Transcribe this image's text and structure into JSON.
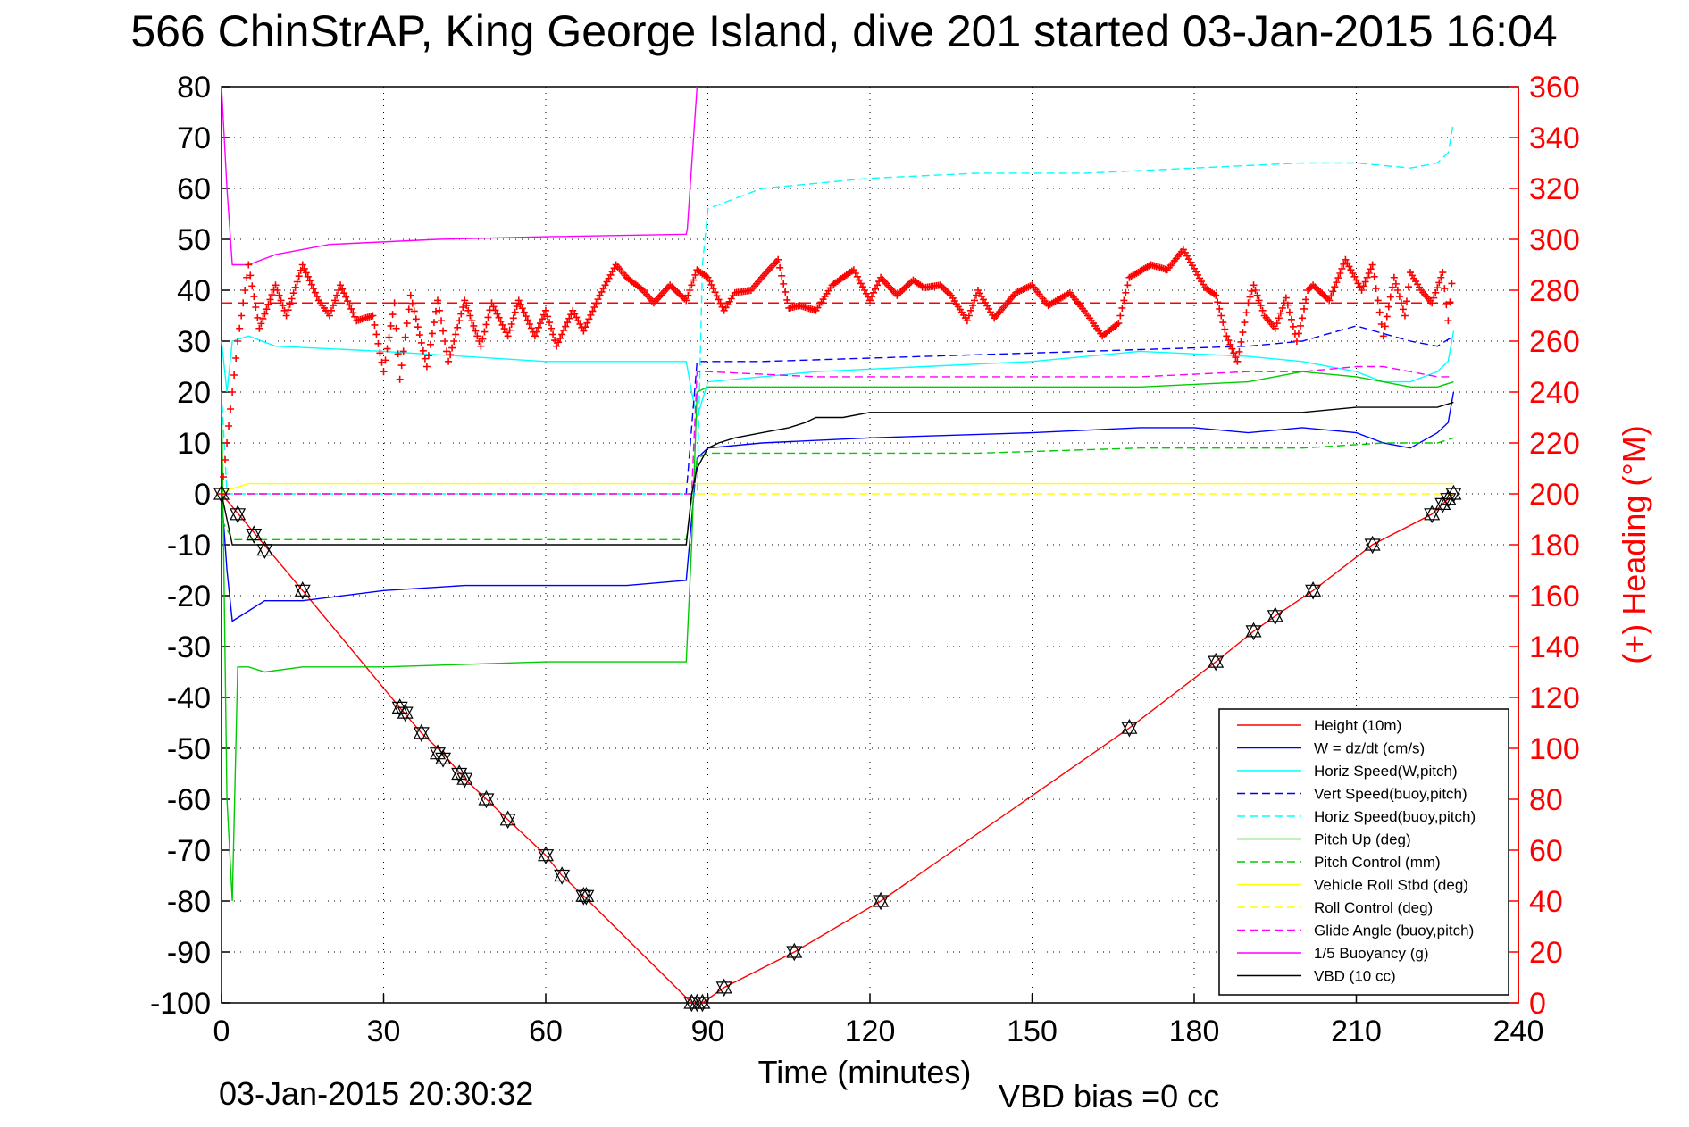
{
  "chart_data": {
    "type": "line",
    "title": "566 ChinStrAP, King George Island, dive 201 started 03-Jan-2015 16:04",
    "xlabel": "Time (minutes)",
    "ylabel_right": "(+) Heading (°M)",
    "footer_left": "03-Jan-2015 20:30:32",
    "footer_right": "VBD bias =0 cc",
    "xlim": [
      0,
      240
    ],
    "ylim": [
      -100,
      80
    ],
    "ylim_right": [
      0,
      360
    ],
    "x_ticks": [
      0,
      30,
      60,
      90,
      120,
      150,
      180,
      210,
      240
    ],
    "y_ticks": [
      80,
      70,
      60,
      50,
      40,
      30,
      20,
      10,
      0,
      -10,
      -20,
      -30,
      -40,
      -50,
      -60,
      -70,
      -80,
      -90,
      -100
    ],
    "y_ticks_right": [
      360,
      340,
      320,
      300,
      280,
      260,
      240,
      220,
      200,
      180,
      160,
      140,
      120,
      100,
      80,
      60,
      40,
      20,
      0
    ],
    "x_tick_labels": [
      "0",
      "30",
      "60",
      "90",
      "120",
      "150",
      "180",
      "210",
      "240"
    ],
    "y_tick_labels": [
      "80",
      "70",
      "60",
      "50",
      "40",
      "30",
      "20",
      "10",
      "0",
      "-10",
      "-20",
      "-30",
      "-40",
      "-50",
      "-60",
      "-70",
      "-80",
      "-90",
      "-100"
    ],
    "y_tick_labels_right": [
      "360",
      "340",
      "320",
      "300",
      "280",
      "260",
      "240",
      "220",
      "200",
      "180",
      "160",
      "140",
      "120",
      "100",
      "80",
      "60",
      "40",
      "20",
      "0"
    ],
    "grid": true,
    "legend_position": "bottom-right",
    "series": [
      {
        "name": "Height (10m)",
        "color": "#ff0000",
        "style": "solid",
        "x": [
          0,
          15,
          33,
          37,
          41,
          45,
          49,
          53,
          60,
          63,
          67,
          87,
          89,
          93,
          106,
          122,
          168,
          184,
          191,
          195,
          202,
          213,
          224,
          227,
          228
        ],
        "y": [
          0,
          -19,
          -42,
          -47,
          -51,
          -56,
          -60,
          -64,
          -71,
          -75,
          -79,
          -100,
          -100,
          -97,
          -90,
          -80,
          -46,
          -33,
          -27,
          -24,
          -19,
          -10,
          -4,
          -1,
          0
        ]
      },
      {
        "name": "W = dz/dt (cm/s)",
        "color": "#0000ff",
        "style": "solid",
        "x": [
          0,
          1,
          2,
          5,
          8,
          15,
          30,
          45,
          60,
          75,
          86,
          87,
          88,
          90,
          100,
          120,
          150,
          170,
          180,
          190,
          200,
          210,
          215,
          220,
          225,
          227,
          228
        ],
        "y": [
          0,
          -15,
          -25,
          -23,
          -21,
          -21,
          -19,
          -18,
          -18,
          -18,
          -17,
          -5,
          7,
          9,
          10,
          11,
          12,
          13,
          13,
          12,
          13,
          12,
          10,
          9,
          12,
          14,
          20
        ]
      },
      {
        "name": "Horiz Speed(W,pitch)",
        "color": "#00ffff",
        "style": "solid",
        "x": [
          0,
          1,
          2,
          5,
          10,
          30,
          60,
          86,
          87,
          88,
          90,
          100,
          110,
          130,
          150,
          170,
          190,
          200,
          210,
          215,
          220,
          225,
          227,
          228
        ],
        "y": [
          30,
          20,
          30,
          31,
          29,
          28,
          26,
          26,
          20,
          15,
          22,
          23,
          24,
          25,
          26,
          28,
          27,
          26,
          24,
          22,
          22,
          24,
          26,
          32
        ]
      },
      {
        "name": "Vert Speed(buoy,pitch)",
        "color": "#0000ff",
        "style": "dashed",
        "x": [
          0,
          5,
          30,
          86,
          88,
          90,
          100,
          130,
          160,
          190,
          200,
          210,
          220,
          225,
          228
        ],
        "y": [
          0,
          0,
          0,
          0,
          26,
          26,
          26,
          27,
          28,
          29,
          30,
          33,
          30,
          29,
          31
        ]
      },
      {
        "name": "Horiz Speed(buoy,pitch)",
        "color": "#00ffff",
        "style": "dashed",
        "x": [
          0,
          1,
          88,
          89,
          90,
          95,
          100,
          110,
          120,
          140,
          160,
          180,
          200,
          210,
          220,
          225,
          227,
          228
        ],
        "y": [
          20,
          0,
          0,
          45,
          56,
          58,
          60,
          61,
          62,
          63,
          63,
          64,
          65,
          65,
          64,
          65,
          67,
          73
        ]
      },
      {
        "name": "Pitch Up (deg)",
        "color": "#00cc00",
        "style": "solid",
        "x": [
          0,
          1,
          2,
          3,
          5,
          8,
          15,
          30,
          60,
          86,
          87,
          88,
          90,
          100,
          130,
          170,
          190,
          200,
          210,
          220,
          225,
          228
        ],
        "y": [
          20,
          -60,
          -80,
          -34,
          -34,
          -35,
          -34,
          -34,
          -33,
          -33,
          -10,
          20,
          21,
          21,
          21,
          21,
          22,
          24,
          23,
          21,
          21,
          22
        ]
      },
      {
        "name": "Pitch Control (mm)",
        "color": "#00cc00",
        "style": "dashed",
        "x": [
          0,
          2,
          5,
          86,
          88,
          90,
          110,
          140,
          170,
          200,
          215,
          225,
          228
        ],
        "y": [
          -5,
          -9,
          -9,
          -9,
          7,
          8,
          8,
          8,
          9,
          9,
          10,
          10,
          11
        ]
      },
      {
        "name": "Vehicle Roll Stbd (deg)",
        "color": "#ffff00",
        "style": "solid",
        "x": [
          0,
          2,
          5,
          10,
          30,
          60,
          87,
          90,
          120,
          150,
          180,
          200,
          212,
          220,
          228
        ],
        "y": [
          0,
          1,
          2,
          2,
          2,
          2,
          2,
          2,
          2,
          2,
          2,
          2,
          2,
          2,
          2
        ]
      },
      {
        "name": "Roll Control (deg)",
        "color": "#ffff00",
        "style": "dashed",
        "x": [
          0,
          228
        ],
        "y": [
          0,
          0
        ]
      },
      {
        "name": "Glide Angle (buoy,pitch)",
        "color": "#ff00ff",
        "style": "dashed",
        "x": [
          0,
          1,
          87,
          88,
          90,
          110,
          140,
          170,
          190,
          200,
          210,
          215,
          220,
          225,
          228
        ],
        "y": [
          0,
          0,
          0,
          24,
          24,
          23,
          23,
          23,
          24,
          24,
          25,
          25,
          24,
          23,
          23
        ]
      },
      {
        "name": "1/5 Buoyancy (g)",
        "color": "#ff00ff",
        "style": "solid",
        "x": [
          0,
          1,
          2,
          5,
          10,
          20,
          40,
          60,
          86,
          86.2,
          88
        ],
        "y": [
          80,
          60,
          45,
          45,
          47,
          49,
          50,
          50.5,
          51,
          52,
          80
        ]
      },
      {
        "name": "VBD (10 cc)",
        "color": "#000000",
        "style": "solid",
        "x": [
          0,
          1,
          2,
          86,
          87,
          88,
          90,
          92,
          95,
          100,
          105,
          108,
          110,
          115,
          120,
          140,
          160,
          180,
          200,
          210,
          215,
          225,
          228
        ],
        "y": [
          0,
          -5,
          -10,
          -10,
          0,
          5,
          9,
          10,
          11,
          12,
          13,
          14,
          15,
          15,
          16,
          16,
          16,
          16,
          16,
          17,
          17,
          17,
          18
        ]
      }
    ],
    "heading": {
      "name": "Heading (+)",
      "color": "#ff0000",
      "style": "markers",
      "reference_value": 275,
      "x": [
        0,
        3,
        5,
        7,
        10,
        12,
        15,
        18,
        20,
        22,
        25,
        28,
        30,
        32,
        33,
        35,
        38,
        40,
        42,
        45,
        48,
        50,
        53,
        55,
        58,
        60,
        62,
        65,
        67,
        70,
        73,
        75,
        78,
        80,
        83,
        86,
        88,
        90,
        93,
        95,
        98,
        100,
        103,
        105,
        107,
        110,
        113,
        117,
        120,
        122,
        125,
        128,
        130,
        133,
        135,
        138,
        140,
        143,
        147,
        150,
        153,
        157,
        160,
        163,
        166,
        168,
        172,
        175,
        178,
        182,
        184,
        186,
        188,
        190,
        191,
        193,
        195,
        197,
        199,
        200,
        201,
        202,
        205,
        208,
        211,
        213,
        215,
        217,
        219,
        220,
        222,
        224,
        226,
        227,
        228
      ],
      "y": [
        200,
        260,
        290,
        265,
        282,
        270,
        290,
        276,
        270,
        282,
        268,
        270,
        248,
        275,
        245,
        278,
        250,
        276,
        252,
        276,
        258,
        275,
        262,
        276,
        262,
        272,
        258,
        272,
        264,
        278,
        290,
        285,
        280,
        275,
        282,
        276,
        288,
        285,
        272,
        279,
        280,
        285,
        292,
        273,
        274,
        272,
        282,
        288,
        276,
        285,
        278,
        284,
        281,
        282,
        278,
        268,
        280,
        269,
        279,
        282,
        274,
        279,
        271,
        262,
        267,
        285,
        290,
        288,
        296,
        281,
        278,
        262,
        252,
        275,
        282,
        270,
        265,
        277,
        260,
        269,
        280,
        282,
        276,
        292,
        280,
        290,
        262,
        285,
        270,
        287,
        280,
        275,
        287,
        268,
        290
      ]
    },
    "waypoint_markers": {
      "x": [
        0,
        3,
        6,
        8,
        15,
        33,
        34,
        37,
        40,
        41,
        44,
        45,
        49,
        53,
        60,
        63,
        67,
        67.5,
        87,
        88,
        89,
        93,
        106,
        122,
        168,
        184,
        191,
        195,
        202,
        213,
        224,
        226,
        227,
        228
      ],
      "y": [
        0,
        -4,
        -8,
        -11,
        -19,
        -42,
        -43,
        -47,
        -51,
        -52,
        -55,
        -56,
        -60,
        -64,
        -71,
        -75,
        -79,
        -79,
        -100,
        -100,
        -100,
        -97,
        -90,
        -80,
        -46,
        -33,
        -27,
        -24,
        -19,
        -10,
        -4,
        -2,
        -1,
        0
      ]
    }
  }
}
